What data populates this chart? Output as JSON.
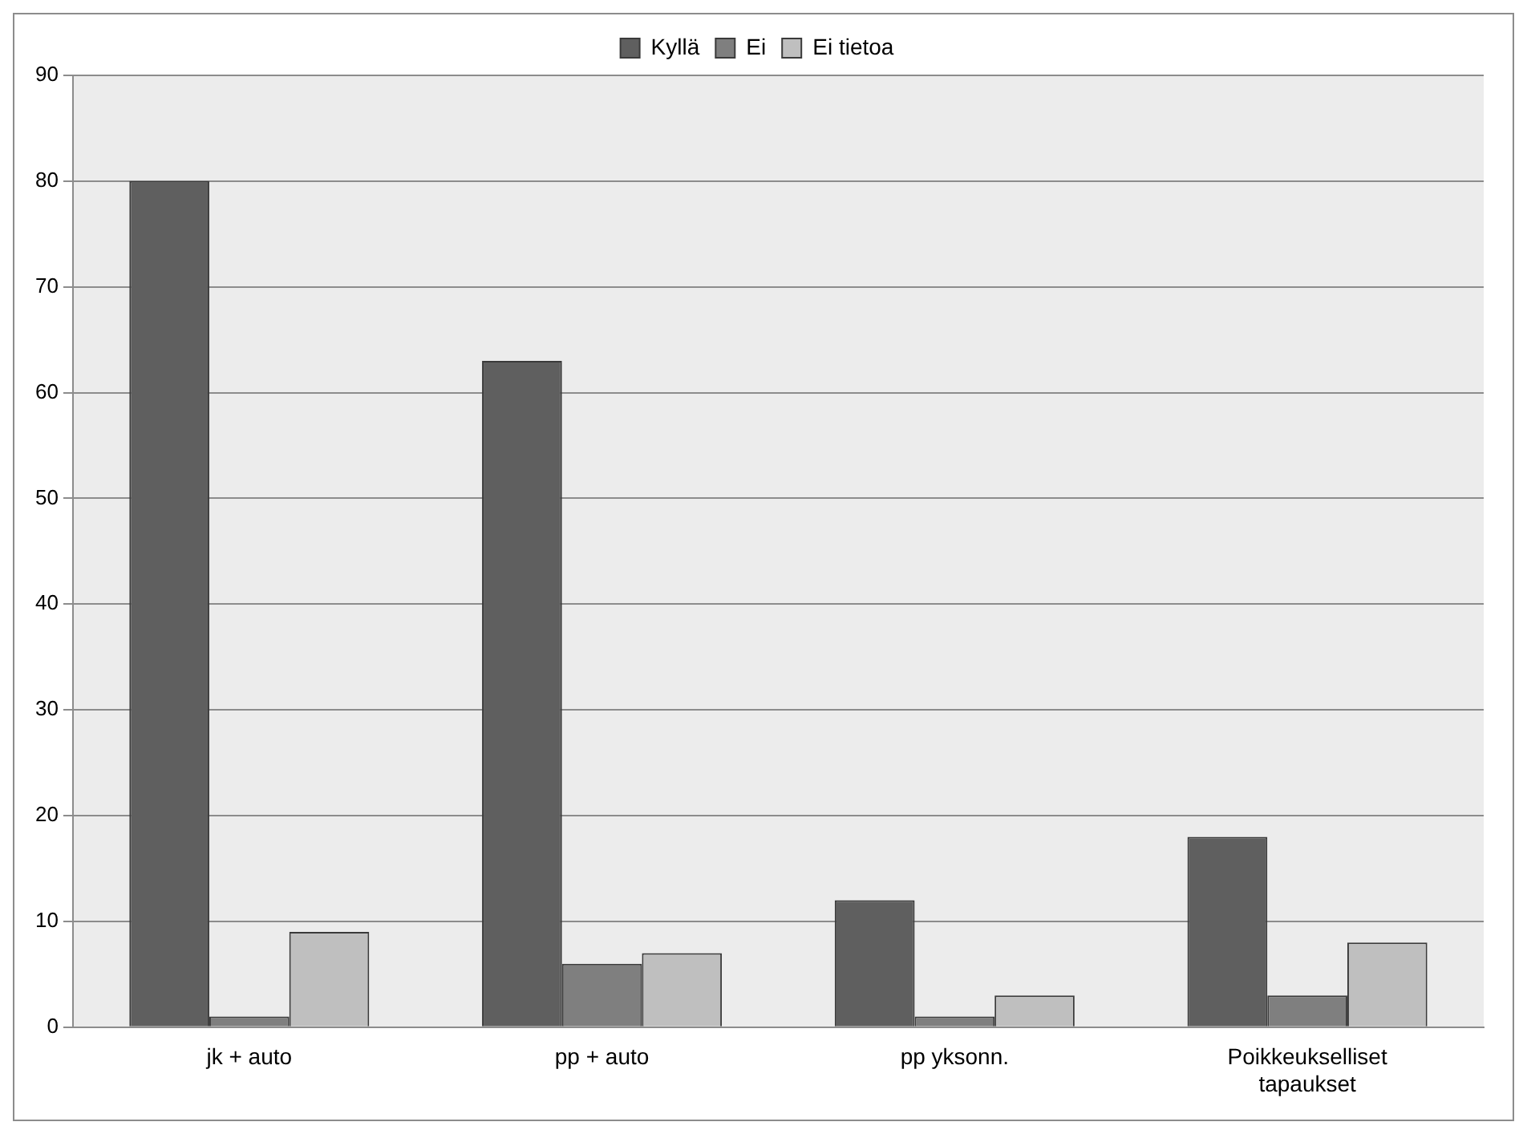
{
  "chart_data": {
    "type": "bar",
    "categories": [
      "jk + auto",
      "pp + auto",
      "pp yksonn.",
      "Poikkeukselliset tapaukset"
    ],
    "series": [
      {
        "name": "Kyllä",
        "color": "#5f5f5f",
        "values": [
          80,
          63,
          12,
          18
        ]
      },
      {
        "name": "Ei",
        "color": "#7f7f7f",
        "values": [
          1,
          6,
          1,
          3
        ]
      },
      {
        "name": "Ei tietoa",
        "color": "#bfbfbf",
        "values": [
          9,
          7,
          3,
          8
        ]
      }
    ],
    "ylim": [
      0,
      90
    ],
    "yticks": [
      0,
      10,
      20,
      30,
      40,
      50,
      60,
      70,
      80,
      90
    ],
    "grid": "y",
    "legend": "top"
  }
}
